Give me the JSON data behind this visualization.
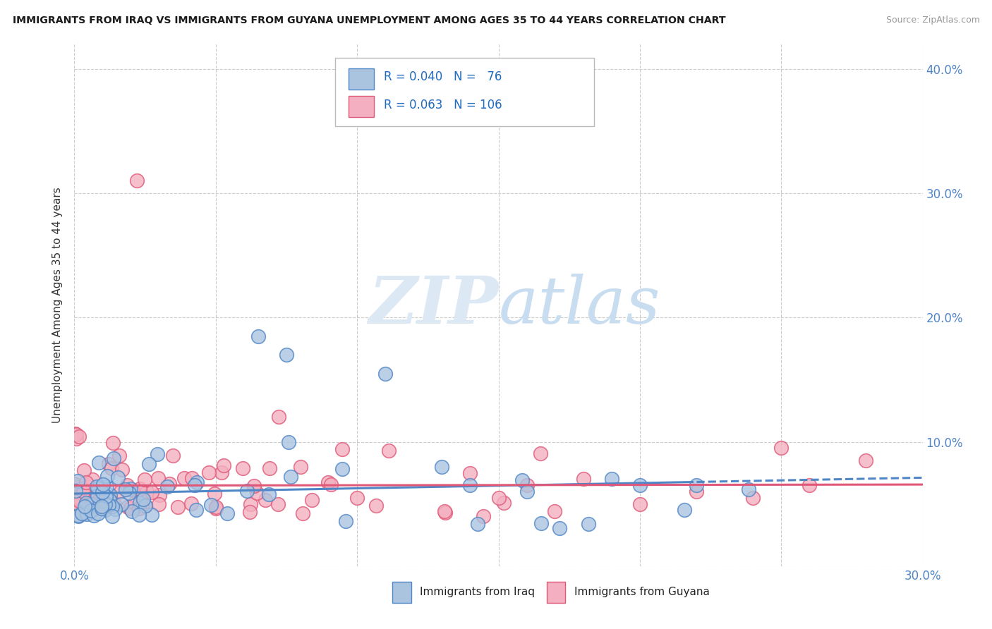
{
  "title": "IMMIGRANTS FROM IRAQ VS IMMIGRANTS FROM GUYANA UNEMPLOYMENT AMONG AGES 35 TO 44 YEARS CORRELATION CHART",
  "source": "Source: ZipAtlas.com",
  "ylabel": "Unemployment Among Ages 35 to 44 years",
  "xlim": [
    0.0,
    0.3
  ],
  "ylim": [
    0.0,
    0.42
  ],
  "xticks": [
    0.0,
    0.05,
    0.1,
    0.15,
    0.2,
    0.25,
    0.3
  ],
  "yticks": [
    0.0,
    0.1,
    0.2,
    0.3,
    0.4
  ],
  "iraq_color": "#aac4e0",
  "iraq_edge_color": "#4f86c6",
  "guyana_color": "#f4b0c0",
  "guyana_edge_color": "#e05878",
  "iraq_R": 0.04,
  "iraq_N": 76,
  "guyana_R": 0.063,
  "guyana_N": 106,
  "legend_label_iraq": "Immigrants from Iraq",
  "legend_label_guyana": "Immigrants from Guyana",
  "watermark_zip": "ZIP",
  "watermark_atlas": "atlas",
  "background_color": "#ffffff",
  "grid_color": "#cccccc",
  "tick_color": "#4f86c6",
  "title_color": "#1a1a1a",
  "ylabel_color": "#333333",
  "legend_text_color_iraq": "#1f6bbf",
  "legend_text_color_guyana": "#c03060"
}
